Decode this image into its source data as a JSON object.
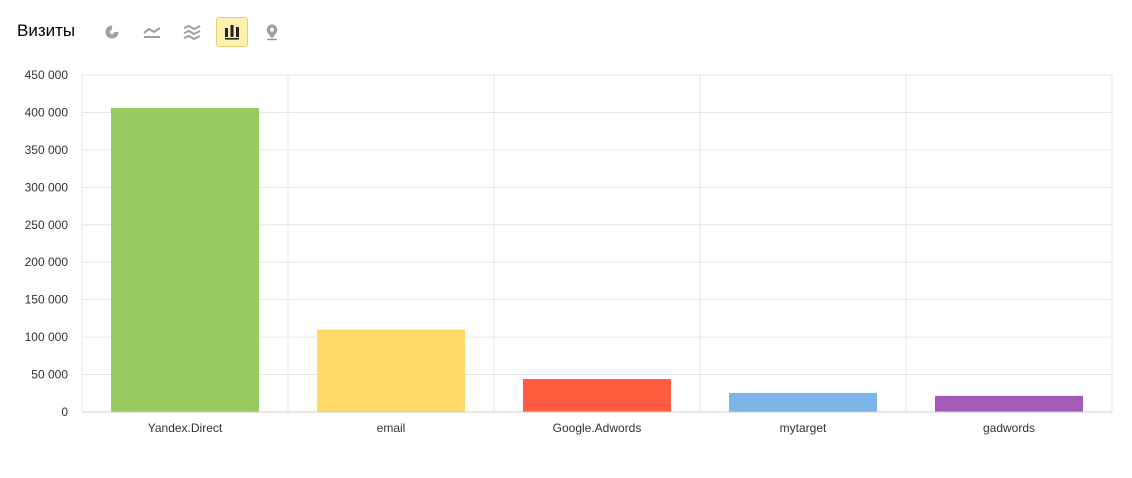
{
  "header": {
    "title": "Визиты",
    "view_buttons": [
      {
        "icon": "pie-chart-icon",
        "active": false
      },
      {
        "icon": "line-chart-icon",
        "active": false
      },
      {
        "icon": "area-chart-icon",
        "active": false
      },
      {
        "icon": "bar-chart-icon",
        "active": true
      },
      {
        "icon": "map-pin-icon",
        "active": false
      }
    ]
  },
  "colors": {
    "active_button_bg": "#fff0b0",
    "active_button_border": "#e6cc6a",
    "icon": "#9e9e9e",
    "icon_active": "#222222",
    "grid": "#e6e6e6"
  },
  "chart_data": {
    "type": "bar",
    "title": "",
    "xlabel": "",
    "ylabel": "",
    "categories": [
      "Yandex.Direct",
      "email",
      "Google.Adwords",
      "mytarget",
      "gadwords"
    ],
    "values": [
      406000,
      110000,
      44000,
      25500,
      21500
    ],
    "colors": [
      "#98cb64",
      "#ffd966",
      "#ff5b3f",
      "#7db5e8",
      "#a45ab8"
    ],
    "ylim": [
      0,
      450000
    ],
    "yticks": [
      0,
      50000,
      100000,
      150000,
      200000,
      250000,
      300000,
      350000,
      400000,
      450000
    ],
    "ytick_labels": [
      "0",
      "50 000",
      "100 000",
      "150 000",
      "200 000",
      "250 000",
      "300 000",
      "350 000",
      "400 000",
      "450 000"
    ],
    "grid": true,
    "legend": "none"
  }
}
